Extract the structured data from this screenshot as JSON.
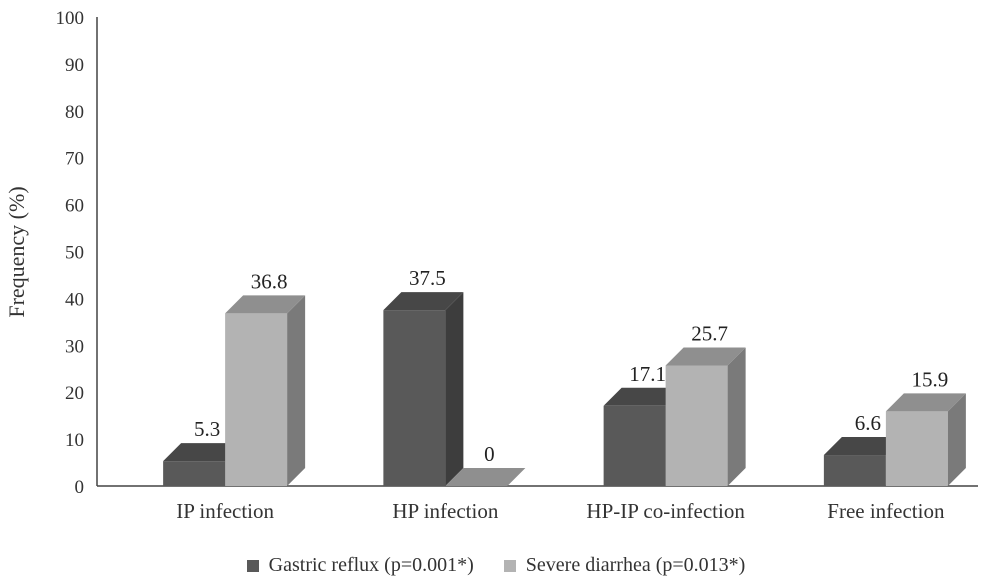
{
  "chart_data": {
    "type": "bar",
    "style": "3d-clustered-column",
    "categories": [
      "IP infection",
      "HP infection",
      "HP-IP co-infection",
      "Free infection"
    ],
    "series": [
      {
        "name": "Gastric reflux (p=0.001*)",
        "values": [
          5.3,
          37.5,
          17.1,
          6.6
        ],
        "color": "#595959",
        "side_color": "#3d3d3d",
        "top_color": "#474747"
      },
      {
        "name": "Severe diarrhea (p=0.013*)",
        "values": [
          36.8,
          0,
          25.7,
          15.9
        ],
        "color": "#b3b3b3",
        "side_color": "#7a7a7a",
        "top_color": "#8f8f8f"
      }
    ],
    "data_labels": [
      [
        "5.3",
        "37.5",
        "17.1",
        "6.6"
      ],
      [
        "36.8",
        "0",
        "25.7",
        "15.9"
      ]
    ],
    "ylabel": "Frequency (%)",
    "xlabel": "",
    "ylim": [
      0,
      100
    ],
    "yticks": [
      "0",
      "10",
      "20",
      "30",
      "40",
      "50",
      "60",
      "70",
      "80",
      "90",
      "100"
    ],
    "grid": false,
    "legend_position": "bottom"
  }
}
